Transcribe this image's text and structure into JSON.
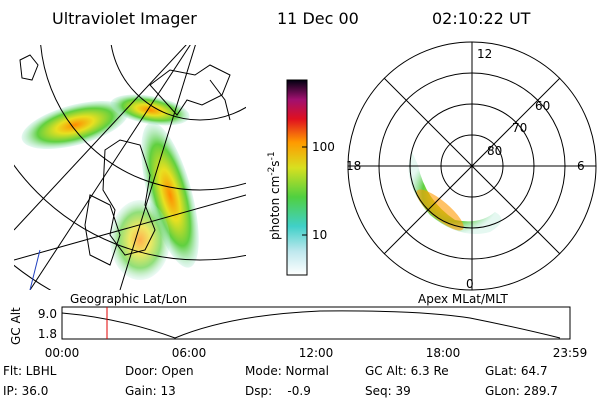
{
  "header": {
    "title": "Ultraviolet Imager",
    "date": "11 Dec 00",
    "time": "02:10:22 UT"
  },
  "map": {
    "label": "Geographic Lat/Lon"
  },
  "colorbar": {
    "label": "photon cm",
    "exp1": "-2",
    "unit": "s",
    "exp2": "-1",
    "ticks": [
      "100",
      "10"
    ]
  },
  "polar": {
    "label": "Apex MLat/MLT",
    "rings": [
      "80",
      "70",
      "60"
    ],
    "mlt": [
      "12",
      "18",
      "6",
      "0"
    ]
  },
  "timeline": {
    "ylabel": "GC Alt",
    "yticks": [
      "9.0",
      "1.8"
    ],
    "xticks": [
      "00:00",
      "06:00",
      "12:00",
      "18:00",
      "23:59"
    ]
  },
  "info": {
    "rows": [
      [
        "Flt: LBHL",
        "Door: Open",
        "Mode: Normal",
        "GC Alt: 6.3 Re",
        "GLat: 64.7"
      ],
      [
        "IP: 36.0",
        "Gain: 13",
        "Dsp:    -0.9",
        "Seq: 39",
        "GLon: 289.7"
      ]
    ]
  }
}
